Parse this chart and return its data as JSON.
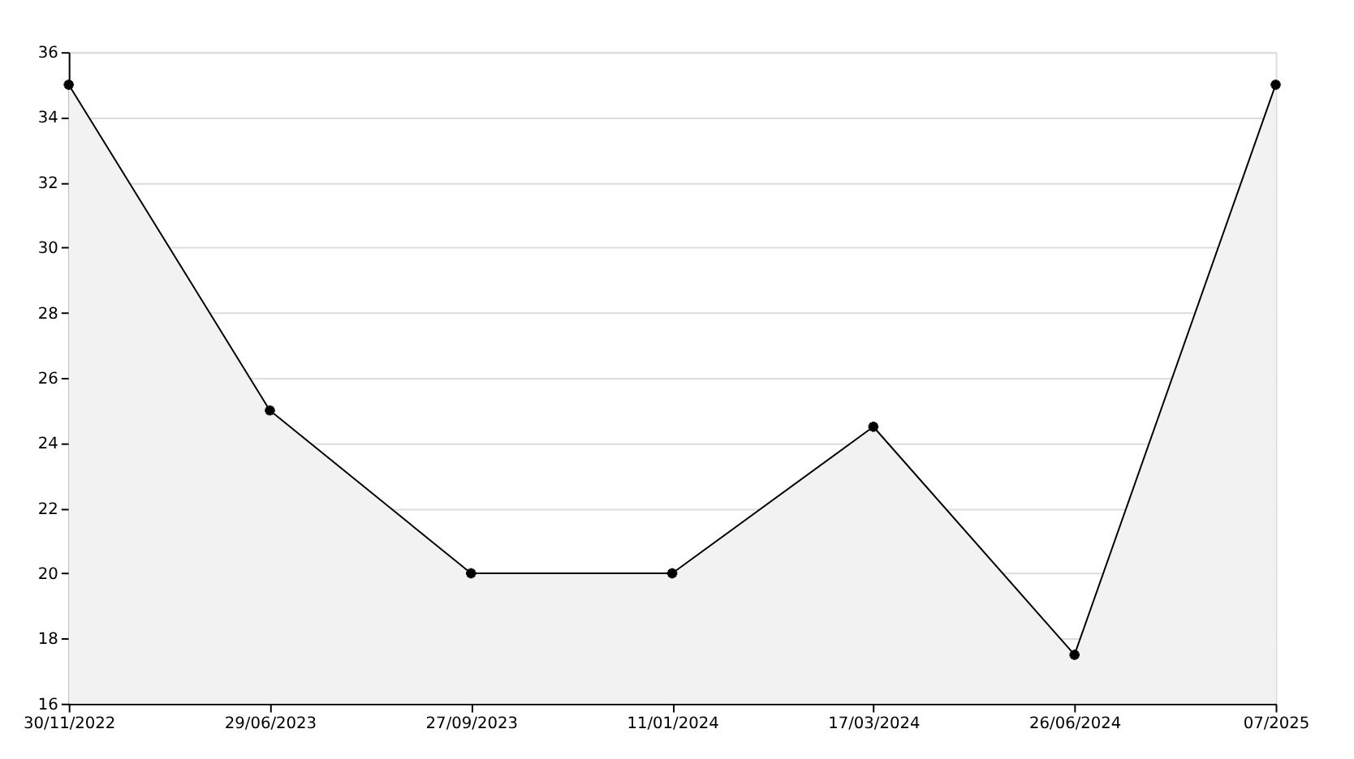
{
  "chart_data": {
    "type": "area",
    "categories": [
      "30/11/2022",
      "29/06/2023",
      "27/09/2023",
      "11/01/2024",
      "17/03/2024",
      "26/06/2024",
      "07/2025"
    ],
    "series": [
      {
        "color": "#000000",
        "values": [
          35,
          25,
          20,
          20,
          24.5,
          17.5,
          35
        ]
      }
    ],
    "ylim": [
      16,
      36
    ],
    "yticks": [
      16,
      18,
      20,
      22,
      24,
      26,
      28,
      30,
      32,
      34,
      36
    ],
    "grid": "y",
    "marker": "cross",
    "line_style": "solid"
  }
}
